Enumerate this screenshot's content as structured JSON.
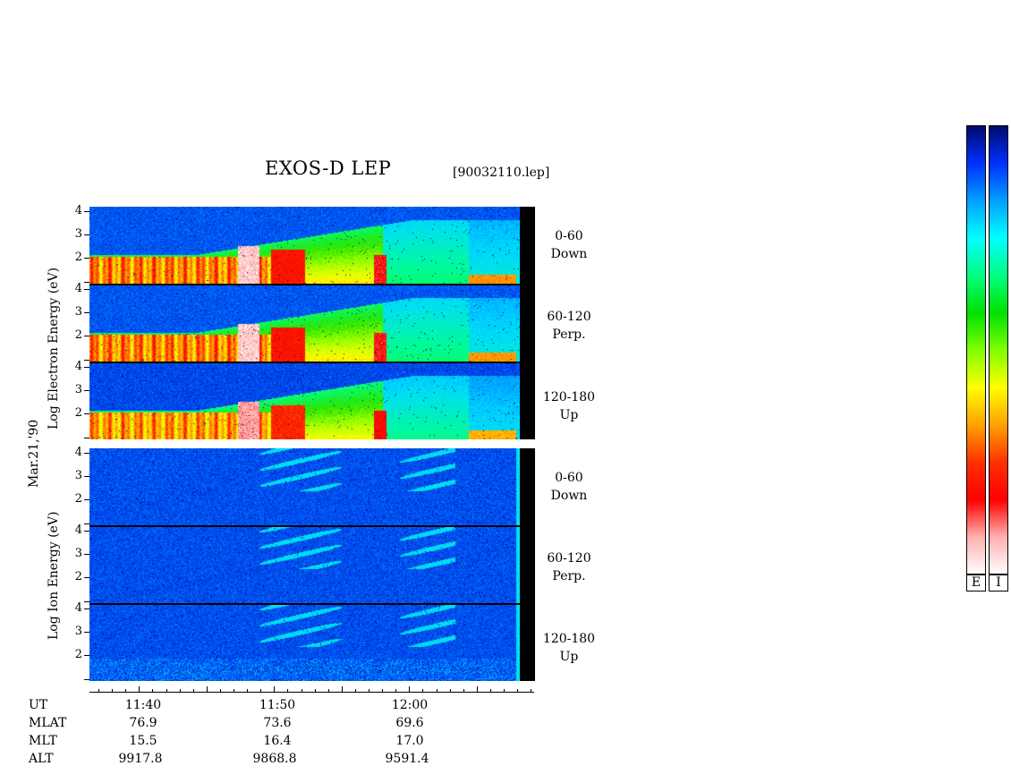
{
  "header": {
    "title": "EXOS-D LEP",
    "filename": "[90032110.lep]"
  },
  "date_label": "Mar.21,'90",
  "electron": {
    "axis_label": "Log Electron Energy (eV)",
    "panels": [
      {
        "label_line1": "0-60",
        "label_line2": "Down"
      },
      {
        "label_line1": "60-120",
        "label_line2": "Perp."
      },
      {
        "label_line1": "120-180",
        "label_line2": "Up"
      }
    ]
  },
  "ion": {
    "axis_label": "Log Ion Energy (eV)",
    "panels": [
      {
        "label_line1": "0-60",
        "label_line2": "Down"
      },
      {
        "label_line1": "60-120",
        "label_line2": "Perp."
      },
      {
        "label_line1": "120-180",
        "label_line2": "Up"
      }
    ]
  },
  "y_ticks": [
    "4",
    "3",
    "2"
  ],
  "orbit": {
    "row_labels": [
      "UT",
      "MLAT",
      "MLT",
      "ALT"
    ],
    "columns": [
      {
        "ut": "11:40",
        "mlat": "76.9",
        "mlt": "15.5",
        "alt": "9917.8"
      },
      {
        "ut": "11:50",
        "mlat": "73.6",
        "mlt": "16.4",
        "alt": "9868.8"
      },
      {
        "ut": "12:00",
        "mlat": "69.6",
        "mlt": "17.0",
        "alt": "9591.4"
      }
    ]
  },
  "colorbars": {
    "labels": [
      "E",
      "I"
    ],
    "colors_top_to_bottom": [
      "#000a6e",
      "#0030ff",
      "#00a0ff",
      "#00ffff",
      "#00ff80",
      "#00e000",
      "#80ff00",
      "#ffff00",
      "#ffa000",
      "#ff3000",
      "#ff0000",
      "#ffb0b0",
      "#ffffff"
    ]
  },
  "chart_data": {
    "type": "heatmap",
    "title": "EXOS-D LEP",
    "subtitle": "[90032110.lep]",
    "xlabel": "UT",
    "x_ticks": [
      "11:40",
      "11:50",
      "12:00"
    ],
    "x_range_ut": [
      "11:36",
      "12:08"
    ],
    "y_ticks": [
      2,
      3,
      4
    ],
    "y_range_log_eV": [
      1,
      4.1
    ],
    "panels": [
      {
        "species": "Electron",
        "pitch_angle": "0-60",
        "direction": "Down"
      },
      {
        "species": "Electron",
        "pitch_angle": "60-120",
        "direction": "Perp."
      },
      {
        "species": "Electron",
        "pitch_angle": "120-180",
        "direction": "Up"
      },
      {
        "species": "Ion",
        "pitch_angle": "0-60",
        "direction": "Down"
      },
      {
        "species": "Ion",
        "pitch_angle": "60-120",
        "direction": "Perp."
      },
      {
        "species": "Ion",
        "pitch_angle": "120-180",
        "direction": "Up"
      }
    ]
  }
}
